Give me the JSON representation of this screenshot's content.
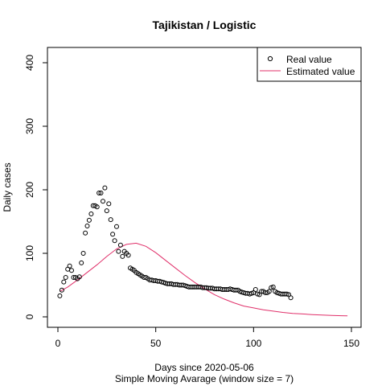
{
  "chart_data": {
    "type": "scatter",
    "title": "Tajikistan / Logistic",
    "xlabel": "Days since 2020-05-06",
    "subtitle": "Simple Moving Avarage (window size = 7)",
    "ylabel": "Daily cases",
    "xlim": [
      0,
      150
    ],
    "ylim": [
      0,
      400
    ],
    "x_ticks": [
      0,
      50,
      100,
      150
    ],
    "y_ticks": [
      0,
      100,
      200,
      300,
      400
    ],
    "legend_position": "top-right",
    "series": [
      {
        "name": "Real value",
        "style": "points",
        "color": "#000000",
        "x": [
          1,
          2,
          3,
          4,
          5,
          6,
          7,
          8,
          9,
          10,
          11,
          12,
          13,
          14,
          15,
          16,
          17,
          18,
          19,
          20,
          21,
          22,
          23,
          24,
          25,
          26,
          27,
          28,
          29,
          30,
          31,
          32,
          33,
          34,
          35,
          36,
          37,
          38,
          39,
          40,
          41,
          42,
          43,
          44,
          45,
          46,
          47,
          48,
          49,
          50,
          51,
          52,
          53,
          54,
          55,
          56,
          57,
          58,
          59,
          60,
          61,
          62,
          63,
          64,
          65,
          66,
          67,
          68,
          69,
          70,
          71,
          72,
          73,
          74,
          75,
          76,
          77,
          78,
          79,
          80,
          81,
          82,
          83,
          84,
          85,
          86,
          87,
          88,
          89,
          90,
          91,
          92,
          93,
          94,
          95,
          96,
          97,
          98,
          99,
          100,
          101,
          102,
          103,
          104,
          105,
          106,
          107,
          108,
          109,
          110,
          111,
          112,
          113,
          114,
          115,
          116,
          117,
          118,
          119
        ],
        "y": [
          33,
          42,
          55,
          62,
          75,
          80,
          73,
          62,
          62,
          60,
          63,
          85,
          100,
          132,
          143,
          152,
          162,
          175,
          175,
          173,
          195,
          195,
          182,
          203,
          167,
          178,
          153,
          130,
          120,
          142,
          103,
          113,
          95,
          103,
          100,
          97,
          77,
          75,
          73,
          70,
          68,
          66,
          64,
          62,
          62,
          60,
          58,
          58,
          57,
          57,
          56,
          56,
          55,
          54,
          53,
          52,
          52,
          52,
          51,
          51,
          51,
          50,
          50,
          50,
          49,
          48,
          47,
          47,
          47,
          47,
          47,
          47,
          47,
          46,
          46,
          46,
          45,
          45,
          45,
          44,
          44,
          44,
          44,
          43,
          43,
          43,
          43,
          44,
          43,
          42,
          42,
          42,
          40,
          39,
          38,
          37,
          37,
          36,
          37,
          38,
          43,
          36,
          35,
          40,
          40,
          38,
          38,
          40,
          46,
          47,
          40,
          38,
          37,
          36,
          36,
          36,
          36,
          35,
          30
        ]
      },
      {
        "name": "Estimated value",
        "style": "line",
        "color": "#e0306a",
        "x": [
          1,
          5,
          10,
          15,
          20,
          25,
          30,
          35,
          40,
          45,
          50,
          55,
          60,
          65,
          70,
          75,
          80,
          85,
          90,
          95,
          100,
          105,
          110,
          115,
          120,
          125,
          130,
          135,
          140,
          145,
          148
        ],
        "y": [
          40,
          47,
          58,
          70,
          82,
          95,
          107,
          114,
          116,
          111,
          101,
          89,
          77,
          65,
          54,
          44,
          35,
          28,
          22,
          17,
          14,
          11,
          9,
          7,
          5.5,
          4.5,
          3.5,
          2.8,
          2.2,
          1.8,
          1.6
        ]
      }
    ]
  }
}
